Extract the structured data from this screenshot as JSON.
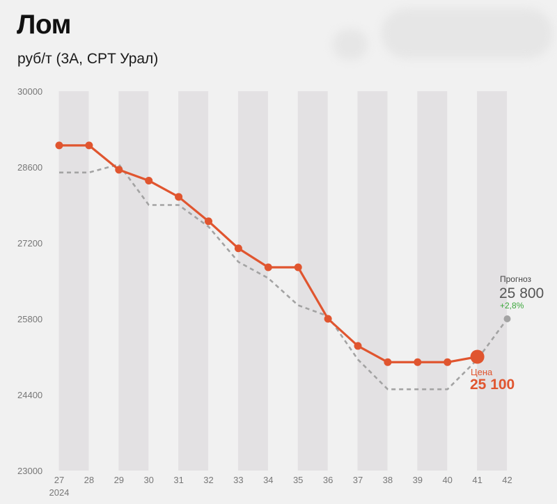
{
  "title": "Лом",
  "subtitle": "руб/т (3А, CPT Урал)",
  "colors": {
    "price": "#e0552f",
    "forecast": "#a3a3a3",
    "band": "#e3e1e3",
    "background": "#f1f1f1",
    "change_positive": "#3aa63a"
  },
  "chart_data": {
    "type": "line",
    "x": [
      "27",
      "28",
      "29",
      "30",
      "31",
      "32",
      "33",
      "34",
      "35",
      "36",
      "37",
      "38",
      "39",
      "40",
      "41",
      "42"
    ],
    "x_sublabel": "2024",
    "yticks": [
      "30000",
      "28600",
      "27200",
      "25800",
      "24400",
      "23000"
    ],
    "ylim": [
      23000,
      30000
    ],
    "grid": "alternating vertical bands",
    "series": [
      {
        "key": "price",
        "style": "solid",
        "values": [
          29000,
          29000,
          28550,
          28350,
          28050,
          27600,
          27100,
          26750,
          26750,
          25800,
          25300,
          25000,
          25000,
          25000,
          25100,
          null
        ]
      },
      {
        "key": "forecast",
        "style": "dashed",
        "values": [
          28500,
          28500,
          28650,
          27900,
          27900,
          27500,
          26850,
          26550,
          26050,
          25850,
          25050,
          24500,
          24500,
          24500,
          25050,
          25800
        ]
      }
    ],
    "annotations": {
      "forecast": {
        "label": "Прогноз",
        "value": "25 800",
        "change": "+2,8%"
      },
      "price": {
        "label": "Цена",
        "value": "25 100"
      }
    }
  }
}
